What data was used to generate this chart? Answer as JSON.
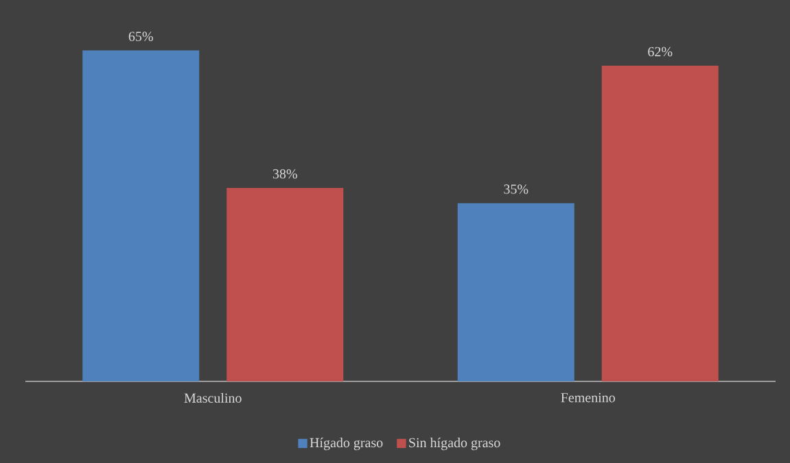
{
  "chart_data": {
    "type": "bar",
    "categories": [
      "Masculino",
      "Femenino"
    ],
    "series": [
      {
        "name": "Hígado graso",
        "color": "#4f81bd",
        "values": [
          65,
          35
        ],
        "value_labels": [
          "65%",
          "35%"
        ]
      },
      {
        "name": "Sin hígado graso",
        "color": "#c0504d",
        "values": [
          38,
          62
        ],
        "value_labels": [
          "38%",
          "62%"
        ]
      }
    ],
    "legend": "bottom"
  }
}
